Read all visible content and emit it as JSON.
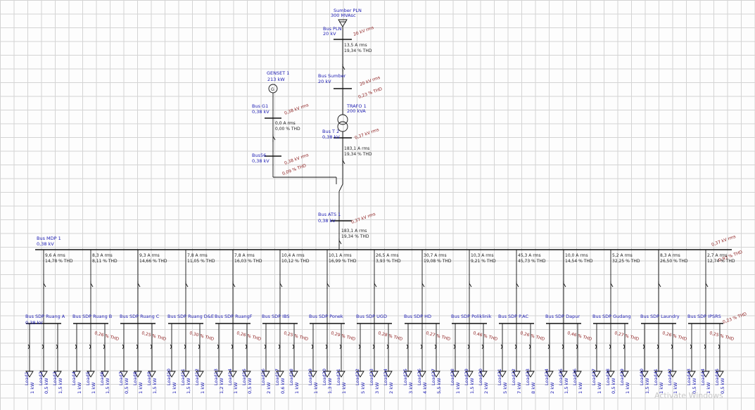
{
  "source": {
    "name": "Sumber PLN",
    "rating": "300 MVAsc"
  },
  "bus_pln": {
    "name": "Bus PLN",
    "kv": "20 kV",
    "v_ann": "20 kV rms"
  },
  "pln_flow": {
    "current": "13,5  A rms",
    "thd": "19,34 % THD"
  },
  "bus_sumber": {
    "name": "Bus Sumber",
    "kv": "20 kV",
    "v_ann": "20 kV rms",
    "thd": "0,23 % THD"
  },
  "genset": {
    "name": "GENSET 1",
    "rating": "213 kW"
  },
  "bus_g1": {
    "name": "Bus G1",
    "kv": "0,38 kV",
    "v_ann": "0,38 kV rms"
  },
  "g1_flow": {
    "current": "0,0  A rms",
    "thd": "0,00 % THD"
  },
  "trafo": {
    "name": "TRAFO 1",
    "rating": "200 kVA"
  },
  "bus_t2": {
    "name": "Bus T 2",
    "kv": "0,38 kV",
    "v_ann": "0,37 kV rms"
  },
  "t2_flow": {
    "current": "183,1  A rms",
    "thd": "19,34 % THD"
  },
  "bus56": {
    "name": "Bus56",
    "kv": "0,38 kV",
    "v_ann": "0,38 kV rms",
    "thd": "0,09 % THD"
  },
  "bus_ats": {
    "name": "Bus ATS 1",
    "kv": "0,38 kV",
    "v_ann": "0,37 kV rms"
  },
  "ats_flow": {
    "current": "183,1  A rms",
    "thd": "19,34 % THD"
  },
  "bus_mdp": {
    "name": "Bus MDP 1",
    "kv": "0,38 kV",
    "v_ann": "0,37 kV rms",
    "thd": "0,93 % THD"
  },
  "feeders": [
    {
      "cur": "9,6   A rms",
      "thd": "14,78 % THD",
      "bus": "Bus SDP Ruang A",
      "kv": "0,38 kV",
      "bthd": "",
      "loads": [
        "Load1",
        "Load2",
        "Load3"
      ],
      "kw": [
        "1 kW",
        "0,5 kW",
        "1,5 kW"
      ]
    },
    {
      "cur": "8,3   A rms",
      "thd": "8,11 % THD",
      "bus": "Bus SDP Ruang B",
      "kv": "0,38 kV",
      "bthd": "0,26 % THD",
      "loads": [
        "Load4",
        "Load5",
        "Load6"
      ],
      "kw": [
        "1 kW",
        "1 kW",
        "1,5 kW"
      ]
    },
    {
      "cur": "9,3   A rms",
      "thd": "14,66 % THD",
      "bus": "Bus SDP Ruang C",
      "kv": "0,38 kV",
      "bthd": "0,25 % THD",
      "loads": [
        "Load7",
        "Load8",
        "Load9"
      ],
      "kw": [
        "0,5 kW",
        "1 kW",
        "1,5 kW"
      ]
    },
    {
      "cur": "7,8   A rms",
      "thd": "11,05 % THD",
      "bus": "Bus SDP Ruang D&E",
      "kv": "0,38 kV",
      "bthd": "0,30 % THD",
      "loads": [
        "Load10",
        "Load11",
        "Load12"
      ],
      "kw": [
        "1 kW",
        "1,5 kW",
        "1 kW"
      ]
    },
    {
      "cur": "7,8   A rms",
      "thd": "16,03 % THD",
      "bus": "Bus SDP RuangF",
      "kv": "0,38 kV",
      "bthd": "0,26 % THD",
      "loads": [
        "Load13",
        "Load14",
        "Load15"
      ],
      "kw": [
        "1,2 kW",
        "1 kW",
        "0,5 kW"
      ]
    },
    {
      "cur": "10,4  A rms",
      "thd": "10,12 % THD",
      "bus": "Bus SDP IBS",
      "kv": "0,38 kV",
      "bthd": "0,25 % THD",
      "loads": [
        "Load16",
        "Load17",
        "Load18"
      ],
      "kw": [
        "2 kW",
        "0,6 kW",
        "1 kW"
      ]
    },
    {
      "cur": "10,1  A rms",
      "thd": "16,99 % THD",
      "bus": "Bus SDP Ponek",
      "kv": "0,38 kV",
      "bthd": "0,29 % THD",
      "loads": [
        "Load19",
        "Load20",
        "Load21"
      ],
      "kw": [
        "1 kW",
        "1,3 kW",
        "1 kW"
      ]
    },
    {
      "cur": "26,5  A rms",
      "thd": "3,93 % THD",
      "bus": "Bus SDP UGD",
      "kv": "0,38 kV",
      "bthd": "0,28 % THD",
      "loads": [
        "Load22",
        "Load23",
        "Load24"
      ],
      "kw": [
        "5 kW",
        "3 kW",
        "2 kW"
      ]
    },
    {
      "cur": "30,7  A rms",
      "thd": "19,08 % THD",
      "bus": "Bus SDP HD",
      "kv": "0,38 kV",
      "bthd": "0,27 % THD",
      "loads": [
        "Load25",
        "Load26",
        "Load27"
      ],
      "kw": [
        "3 kW",
        "4 kW",
        "5,5 kW"
      ]
    },
    {
      "cur": "10,3  A rms",
      "thd": "9,21 % THD",
      "bus": "Bus SDP Poliklinik",
      "kv": "0,38 kV",
      "bthd": "0,46 % THD",
      "loads": [
        "Load28",
        "Load29",
        "Load30"
      ],
      "kw": [
        "1 kW",
        "1,5 kW",
        "2 kW"
      ]
    },
    {
      "cur": "45,3  A rms",
      "thd": "45,73 % THD",
      "bus": "Bus SDP P.AC",
      "kv": "0,38 kV",
      "bthd": "0,26 % THD",
      "loads": [
        "Load31",
        "Load32",
        "Load33"
      ],
      "kw": [
        "5 kW",
        "7 kW",
        "8 kW"
      ]
    },
    {
      "cur": "10,0  A rms",
      "thd": "14,54 % THD",
      "bus": "Bus SDP Dapur",
      "kv": "0,38 kV",
      "bthd": "0,46 % THD",
      "loads": [
        "Load34",
        "Load35",
        "Load36"
      ],
      "kw": [
        "2 kW",
        "1,5 kW",
        "1 kW"
      ]
    },
    {
      "cur": "5,2   A rms",
      "thd": "32,25 % THD",
      "bus": "Bus SDP Gudang",
      "kv": "0,38 kV",
      "bthd": "0,27 % THD",
      "loads": [
        "Load37",
        "Load38",
        "Load39"
      ],
      "kw": [
        "1 kW",
        "0,5 kW",
        "1 kW"
      ]
    },
    {
      "cur": "8,3   A rms",
      "thd": "26,50 % THD",
      "bus": "Bus SDP Laundry",
      "kv": "0,38 kV",
      "bthd": "0,26 % THD",
      "loads": [
        "Load40",
        "Load41",
        "Load42"
      ],
      "kw": [
        "1,5 kW",
        "1 kW",
        "1 kW"
      ]
    },
    {
      "cur": "2,7   A rms",
      "thd": "12,74 % THD",
      "bus": "Bus SDP IPSRS",
      "kv": "0,38 kV",
      "bthd": "0,25 % THD",
      "loads": [
        "Load43",
        "Load44",
        "Load45"
      ],
      "kw": [
        "0,5 kW",
        "1 kW",
        "0,5 kW"
      ]
    }
  ],
  "end_annotations": {
    "v_ann": "0,37 kV rms",
    "thd1": "0,23 % THD",
    "thd2": "0,37 % THD"
  },
  "watermark": "Activate Windows"
}
